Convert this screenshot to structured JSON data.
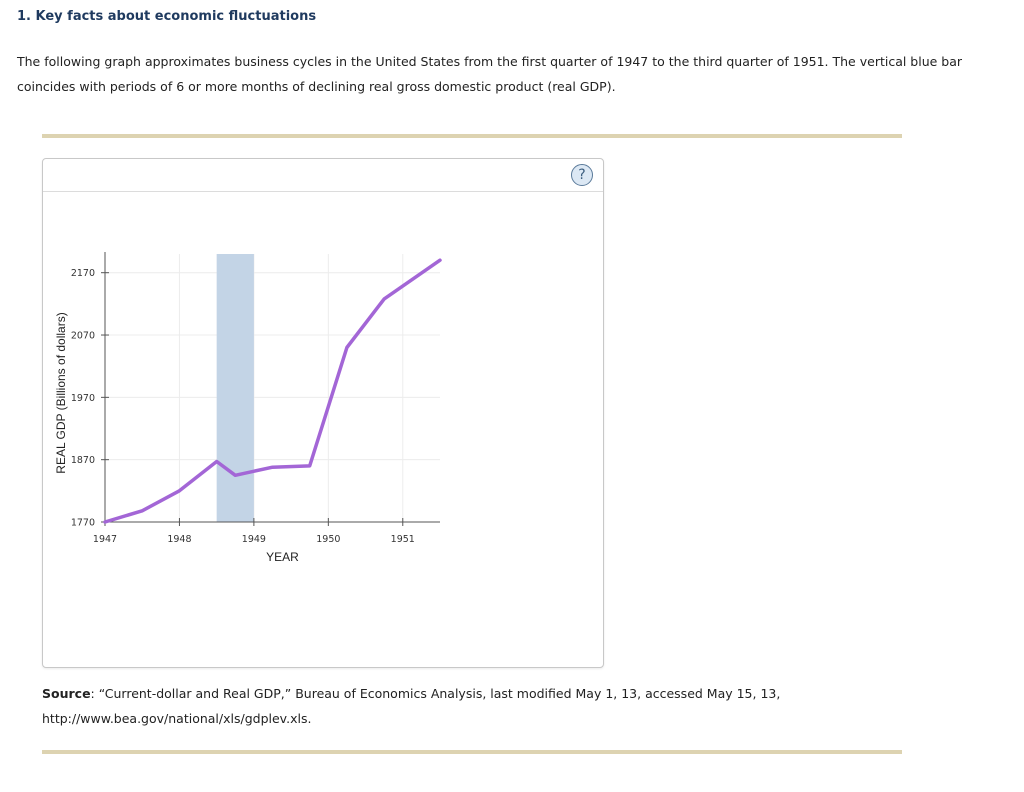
{
  "heading": "1. Key facts about economic fluctuations",
  "intro": "The following graph approximates business cycles in the United States from the first quarter of 1947 to the third quarter of 1951. The vertical blue bar coincides with periods of 6 or more months of declining real gross domestic product (real GDP).",
  "help_symbol": "?",
  "chart_data": {
    "type": "line",
    "title": "",
    "xlabel": "YEAR",
    "ylabel": "REAL GDP (Billions of dollars)",
    "x_ticks": [
      "1947",
      "1948",
      "1949",
      "1950",
      "1951"
    ],
    "y_ticks": [
      "1770",
      "1870",
      "1970",
      "2070",
      "2170"
    ],
    "xlim": [
      1947.0,
      1951.5
    ],
    "ylim": [
      1770,
      2200
    ],
    "grid": true,
    "series": [
      {
        "color": "#a366d6",
        "points": [
          [
            1947.0,
            1770
          ],
          [
            1947.5,
            1788
          ],
          [
            1948.0,
            1820
          ],
          [
            1948.5,
            1867
          ],
          [
            1948.75,
            1845
          ],
          [
            1949.25,
            1858
          ],
          [
            1949.75,
            1860
          ],
          [
            1950.25,
            2050
          ],
          [
            1950.75,
            2128
          ],
          [
            1951.5,
            2190
          ]
        ]
      }
    ],
    "recessions": [
      {
        "start": 1948.5,
        "end": 1949.0,
        "color": "#c3d4e6"
      }
    ]
  },
  "source": {
    "label": "Source",
    "text": ": “Current-dollar and Real GDP,” Bureau of Economics Analysis, last modified May 1, 13, accessed May 15, 13, http://www.bea.gov/national/xls/gdplev.xls."
  }
}
